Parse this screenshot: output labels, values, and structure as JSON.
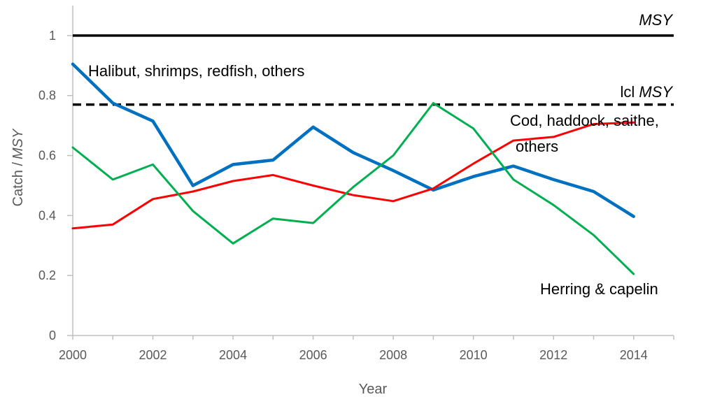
{
  "chart_data": {
    "type": "line",
    "xlabel": "Year",
    "ylabel_plain": "Catch /",
    "ylabel_italic": "MSY",
    "xlim": [
      2000,
      2015
    ],
    "ylim": [
      0,
      1.1
    ],
    "x_ticks": [
      "2000",
      "2002",
      "2004",
      "2006",
      "2008",
      "2010",
      "2012",
      "2014"
    ],
    "y_ticks": [
      "0",
      "0.2",
      "0.4",
      "0.6",
      "0.8",
      "1"
    ],
    "grid": false,
    "x": [
      2000,
      2001,
      2002,
      2003,
      2004,
      2005,
      2006,
      2007,
      2008,
      2009,
      2010,
      2011,
      2012,
      2013,
      2014
    ],
    "series": [
      {
        "key": "halibut",
        "color": "#0070C0",
        "values": [
          0.905,
          0.775,
          0.715,
          0.5,
          0.57,
          0.585,
          0.695,
          0.61,
          0.55,
          0.485,
          0.53,
          0.565,
          0.52,
          0.48,
          0.397
        ]
      },
      {
        "key": "cod",
        "color": "#FF0000",
        "values": [
          0.357,
          0.37,
          0.455,
          0.48,
          0.515,
          0.535,
          0.5,
          0.468,
          0.448,
          0.49,
          0.573,
          0.65,
          0.662,
          0.705,
          0.71
        ]
      },
      {
        "key": "herring",
        "color": "#00B050",
        "values": [
          0.627,
          0.52,
          0.57,
          0.415,
          0.307,
          0.39,
          0.375,
          0.495,
          0.6,
          0.775,
          0.69,
          0.52,
          0.435,
          0.335,
          0.205
        ]
      }
    ],
    "reference_lines": [
      {
        "key": "msy",
        "y": 1.0,
        "style": "solid",
        "color": "#000000"
      },
      {
        "key": "lcl",
        "y": 0.77,
        "style": "dashed",
        "color": "#000000"
      }
    ],
    "annotations": {
      "msy": "MSY",
      "lcl_prefix": "lcl",
      "lcl_italic": "MSY",
      "halibut": "Halibut, shrimps, redfish, others",
      "cod_line1": "Cod, haddock, saithe,",
      "cod_line2": "others",
      "herring": "Herring & capelin"
    }
  }
}
